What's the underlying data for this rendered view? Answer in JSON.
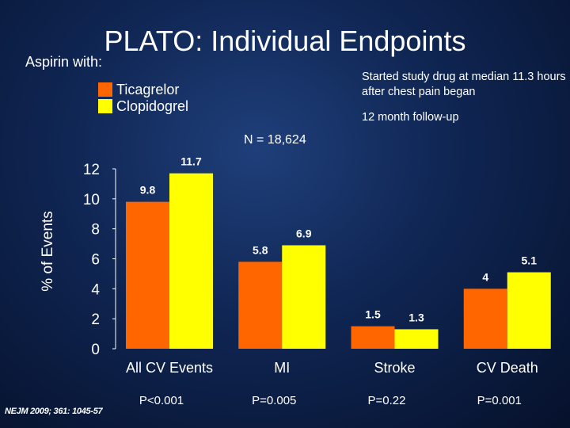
{
  "title": "PLATO: Individual Endpoints",
  "subtitle": "Aspirin with:",
  "legend": [
    {
      "label": "Ticagrelor",
      "color": "#ff6600"
    },
    {
      "label": "Clopidogrel",
      "color": "#ffff00"
    }
  ],
  "note_drug": "Started study drug at median 11.3 hours after chest pain began",
  "note_followup": "12 month follow-up",
  "sample_size": "N = 18,624",
  "citation": "NEJM 2009; 361: 1045-57",
  "colors": {
    "ticagrelor": "#ff6600",
    "clopidogrel": "#ffff00",
    "text": "#ffffff"
  },
  "chart_data": {
    "type": "bar",
    "ylabel": "% of Events",
    "ylim": [
      0,
      12
    ],
    "yticks": [
      "0",
      "2",
      "4",
      "6",
      "8",
      "10",
      "12"
    ],
    "categories": [
      "All CV Events",
      "MI",
      "Stroke",
      "CV Death"
    ],
    "series": [
      {
        "name": "Ticagrelor",
        "values": [
          9.8,
          5.8,
          1.5,
          4
        ],
        "labels": [
          "9.8",
          "5.8",
          "1.5",
          "4"
        ],
        "color": "#ff6600"
      },
      {
        "name": "Clopidogrel",
        "values": [
          11.7,
          6.9,
          1.3,
          5.1
        ],
        "labels": [
          "11.7",
          "6.9",
          "1.3",
          "5.1"
        ],
        "color": "#ffff00"
      }
    ],
    "p_values": [
      "P<0.001",
      "P=0.005",
      "P=0.22",
      "P=0.001"
    ]
  }
}
